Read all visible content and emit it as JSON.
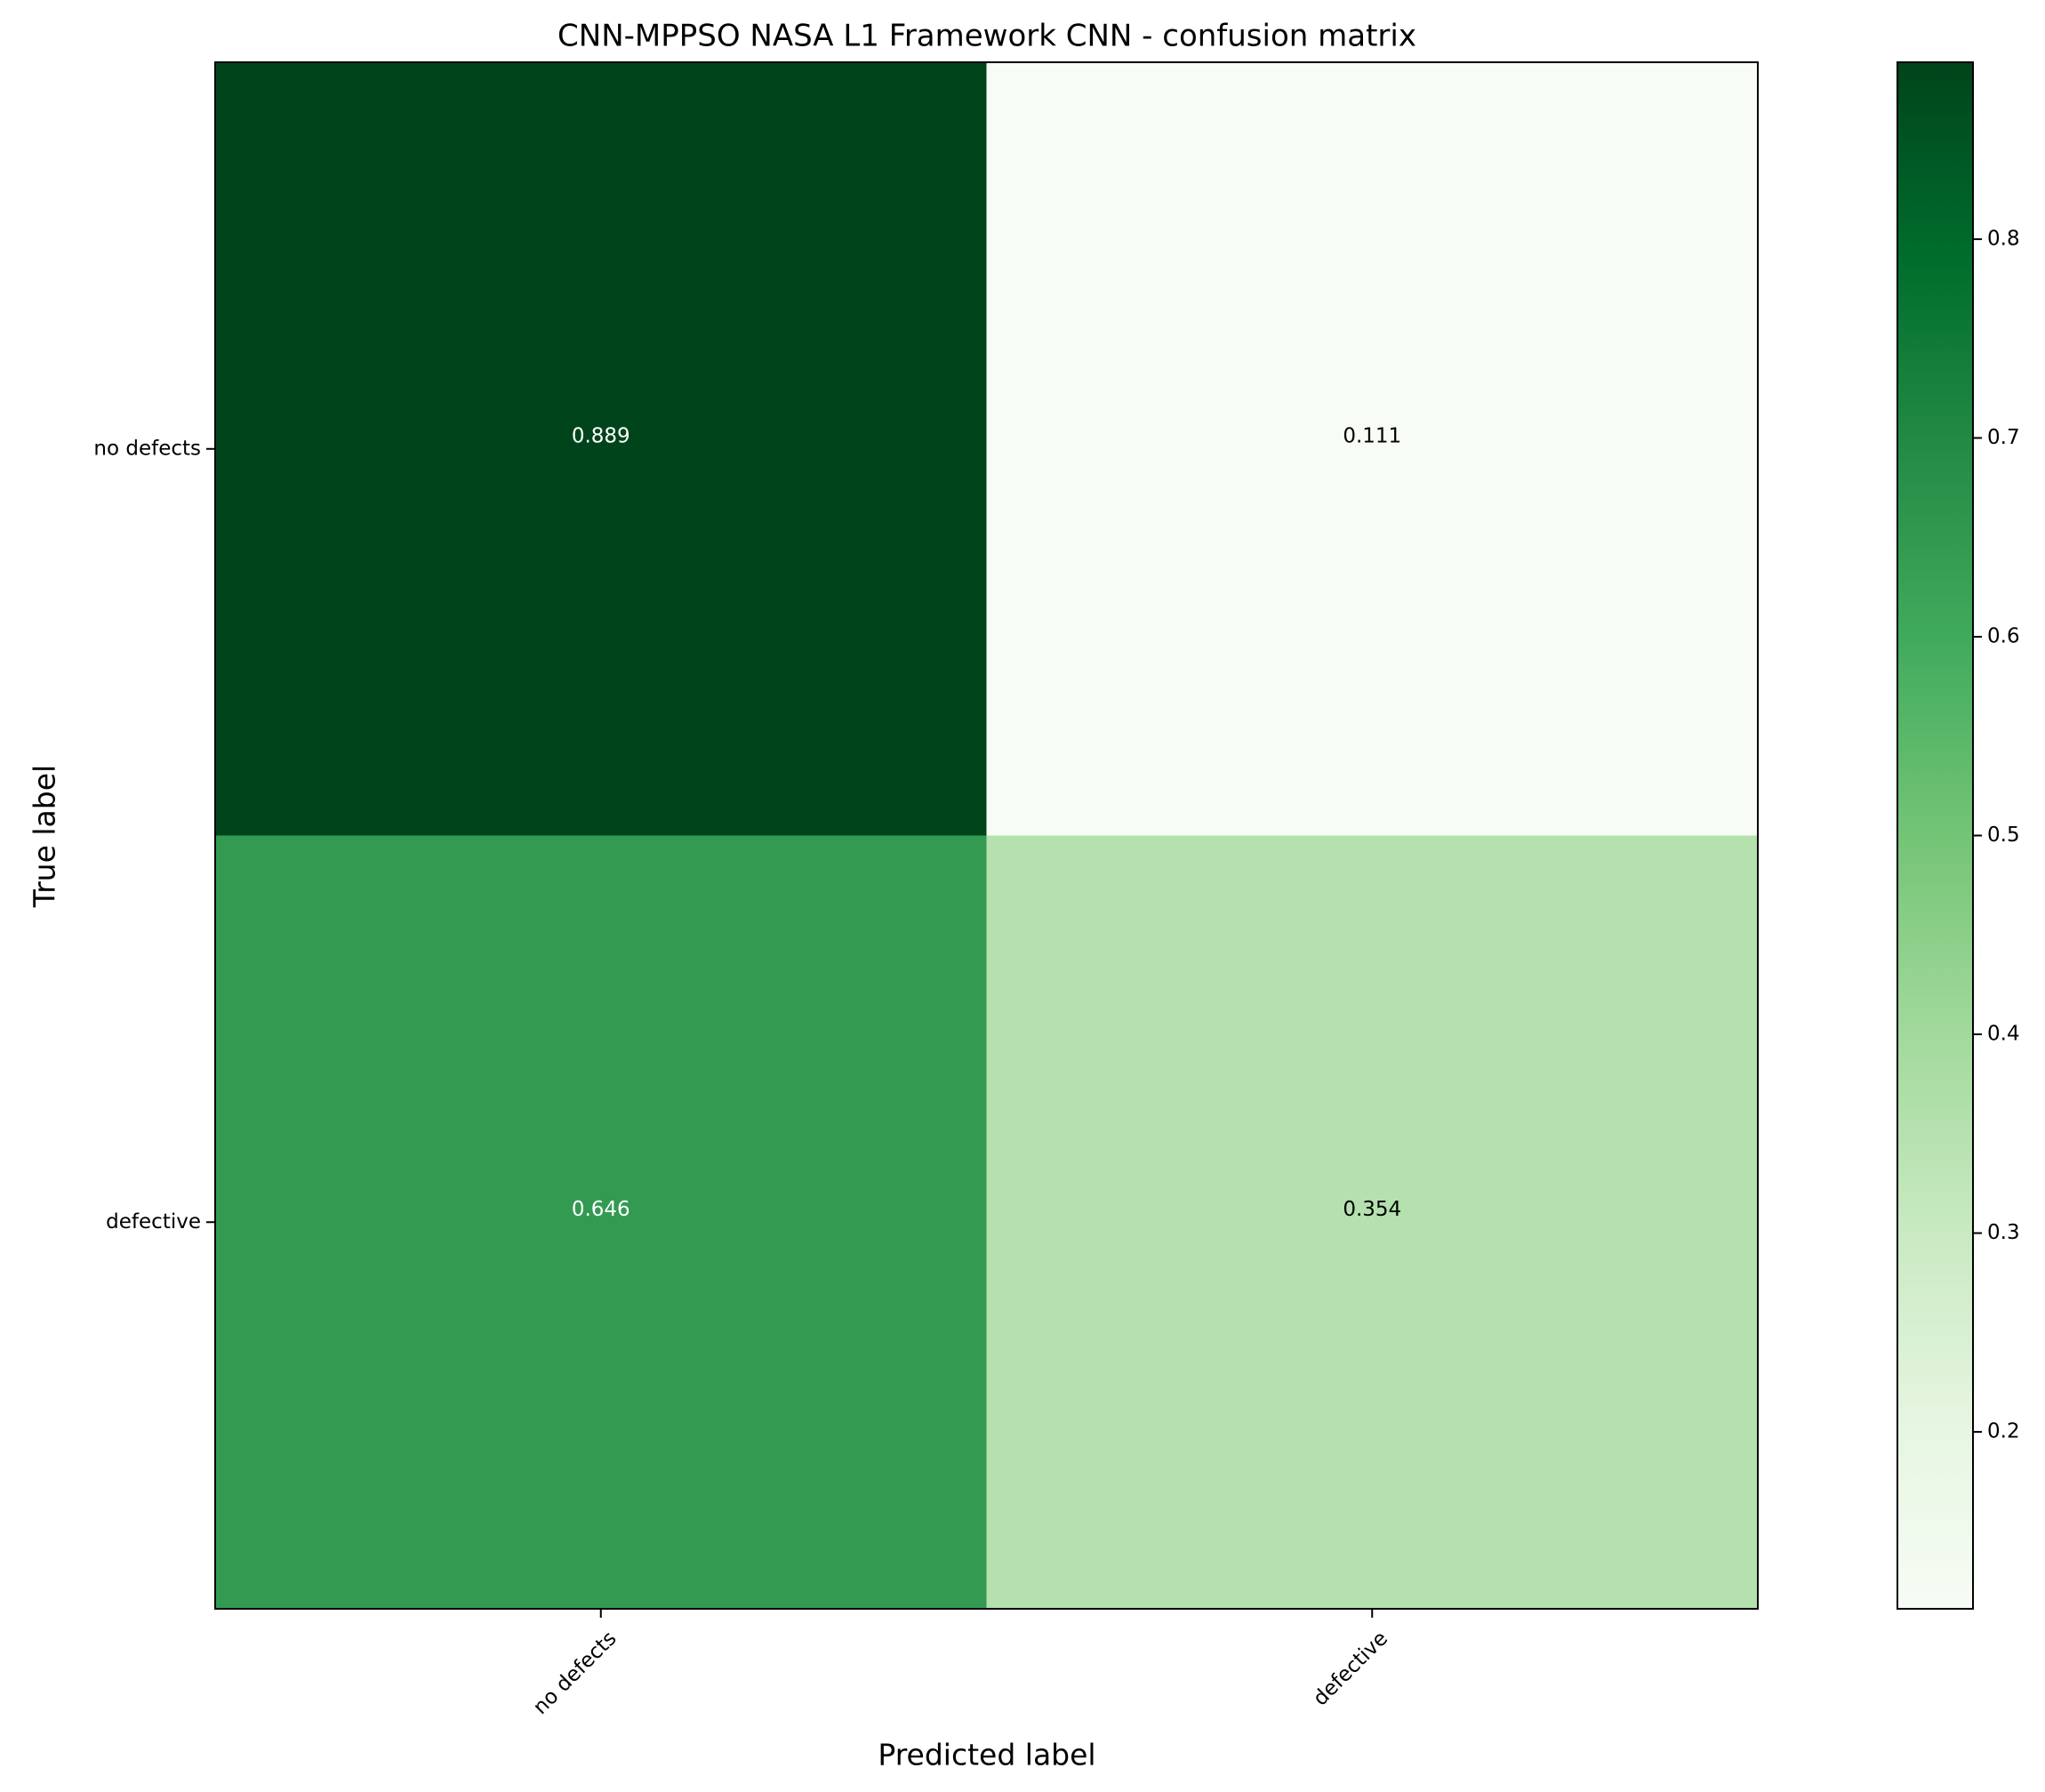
{
  "chart_data": {
    "type": "heatmap",
    "title": "CNN-MPPSO NASA L1 Framework CNN -  confusion matrix",
    "xlabel": "Predicted label",
    "ylabel": "True label",
    "x_categories": [
      "no defects",
      "defective"
    ],
    "y_categories": [
      "no defects",
      "defective"
    ],
    "z": [
      [
        0.889,
        0.111
      ],
      [
        0.646,
        0.354
      ]
    ],
    "colormap": "Greens",
    "colorbar_ticks": [
      0.2,
      0.3,
      0.4,
      0.5,
      0.6,
      0.7,
      0.8
    ]
  }
}
